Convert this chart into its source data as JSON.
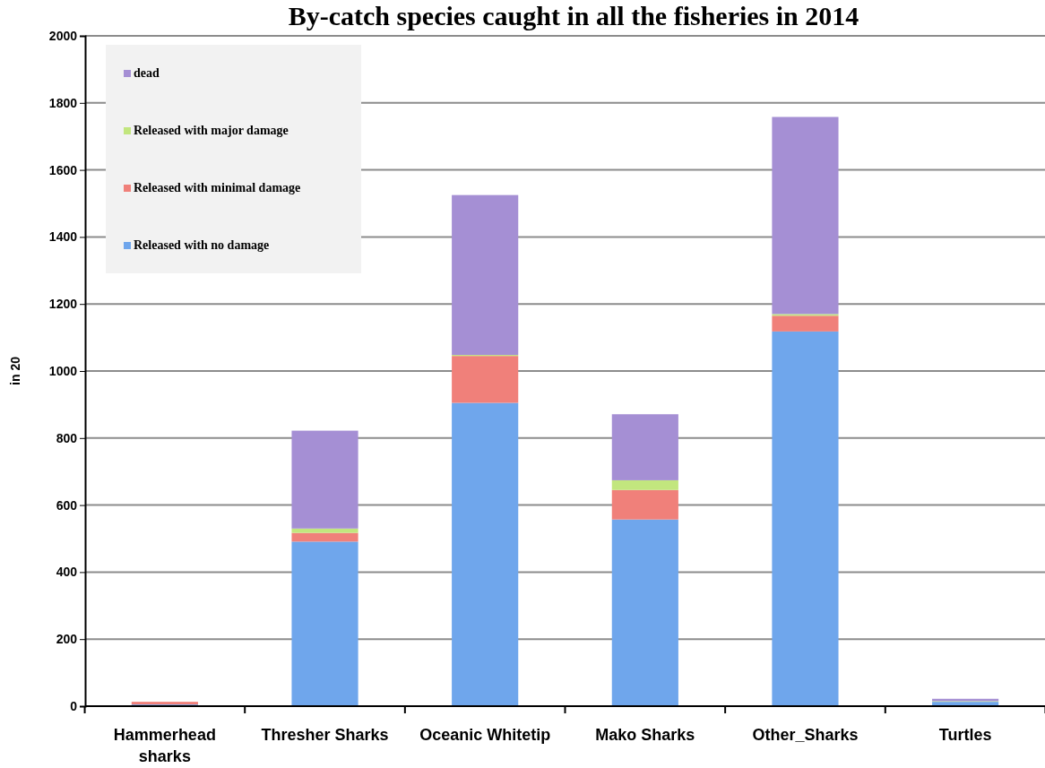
{
  "chart_data": {
    "type": "bar",
    "title": "By-catch species caught in all the fisheries in 2014",
    "ylabel": "in 20",
    "categories": [
      "Hammerhead sharks",
      "Thresher Sharks",
      "Oceanic Whitetip",
      "Mako Sharks",
      "Other_Sharks",
      "Turtles"
    ],
    "stacked": true,
    "series": [
      {
        "name": "Released with no damage",
        "color": "#6fa6ec",
        "values": [
          5,
          491,
          905,
          557,
          1118,
          13
        ]
      },
      {
        "name": "Released with minimal damage",
        "color": "#f0807a",
        "values": [
          8,
          26,
          140,
          88,
          47,
          0
        ]
      },
      {
        "name": "Released with major damage",
        "color": "#c2e67e",
        "values": [
          0,
          13,
          3,
          29,
          5,
          2
        ]
      },
      {
        "name": "dead",
        "color": "#a58fd4",
        "values": [
          0,
          292,
          477,
          197,
          588,
          7
        ]
      }
    ],
    "ylim": [
      0,
      2000
    ],
    "yticks": [
      0,
      200,
      400,
      600,
      800,
      1000,
      1200,
      1400,
      1600,
      1800,
      2000
    ],
    "grid": "y",
    "legend": "top left"
  }
}
